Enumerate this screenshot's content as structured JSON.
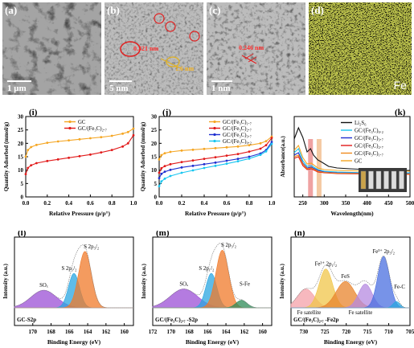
{
  "figure": {
    "panels_top": [
      {
        "id": "a",
        "label": "(a)",
        "scale_bar": "1 μm"
      },
      {
        "id": "b",
        "label": "(b)",
        "scale_bar": "5 nm",
        "annotations": [
          "0.321 nm",
          "1.6 nm"
        ]
      },
      {
        "id": "c",
        "label": "(c)",
        "scale_bar": "1 nm",
        "annotations": [
          "0.246 nm"
        ]
      },
      {
        "id": "d",
        "label": "(d)",
        "element": "Fe"
      }
    ],
    "colors": {
      "gc": "#f5a623",
      "gcfe": "#e11919",
      "blue": "#1f2fd0",
      "cyan": "#19c6f0",
      "orange": "#f08a1c",
      "black": "#111111"
    }
  },
  "chart_data": [
    {
      "id": "i",
      "label": "(i)",
      "type": "line",
      "xlabel": "Relative Pressure (p/p°)",
      "ylabel": "Quantity Adsorbed (mmol/g)",
      "xlim": [
        0,
        1.0
      ],
      "ylim": [
        0,
        30
      ],
      "xticks": [
        "0.0",
        "0.2",
        "0.4",
        "0.6",
        "0.8",
        "1.0"
      ],
      "yticks": [
        "0",
        "5",
        "10",
        "15",
        "20",
        "25",
        "30"
      ],
      "series": [
        {
          "name": "GC",
          "color": "#f5a623",
          "x": [
            0,
            0.02,
            0.05,
            0.1,
            0.2,
            0.3,
            0.4,
            0.5,
            0.6,
            0.7,
            0.8,
            0.9,
            0.95,
            1.0
          ],
          "y": [
            15,
            17.5,
            18.6,
            19.4,
            20.2,
            20.7,
            21.1,
            21.5,
            21.9,
            22.3,
            22.8,
            23.6,
            24.2,
            25.5
          ]
        },
        {
          "name": "GC/(Fe₃C)₂.₇",
          "color": "#e11919",
          "x": [
            0,
            0.02,
            0.05,
            0.1,
            0.2,
            0.3,
            0.4,
            0.5,
            0.6,
            0.7,
            0.8,
            0.9,
            0.95,
            1.0
          ],
          "y": [
            8.5,
            10.8,
            11.8,
            12.6,
            13.4,
            14.0,
            14.6,
            15.2,
            15.8,
            16.6,
            17.5,
            18.8,
            20.0,
            23.0
          ]
        }
      ]
    },
    {
      "id": "j",
      "label": "(j)",
      "type": "line",
      "xlabel": "Relative Pressure (p/p°)",
      "ylabel": "Quantity Adsorbed (mmol/g)",
      "xlim": [
        0,
        1.0
      ],
      "ylim": [
        0,
        30
      ],
      "xticks": [
        "0.0",
        "0.2",
        "0.4",
        "0.6",
        "0.8",
        "1.0"
      ],
      "yticks": [
        "0",
        "5",
        "10",
        "15",
        "20",
        "25",
        "30"
      ],
      "series": [
        {
          "name": "GC/(Fe₃C)₁.₇",
          "color": "#f5a623",
          "x": [
            0,
            0.02,
            0.05,
            0.1,
            0.2,
            0.3,
            0.4,
            0.5,
            0.6,
            0.7,
            0.8,
            0.9,
            0.95,
            1.0
          ],
          "y": [
            14,
            15.6,
            16.3,
            16.8,
            17.3,
            17.6,
            17.9,
            18.2,
            18.5,
            18.8,
            19.3,
            20.0,
            20.8,
            22.5
          ]
        },
        {
          "name": "GC/(Fe₃C)₂.₇",
          "color": "#e11919",
          "x": [
            0,
            0.02,
            0.05,
            0.1,
            0.2,
            0.3,
            0.4,
            0.5,
            0.6,
            0.7,
            0.8,
            0.9,
            0.95,
            1.0
          ],
          "y": [
            9,
            10.7,
            11.5,
            12.2,
            13.0,
            13.6,
            14.2,
            14.8,
            15.4,
            16.0,
            16.9,
            18.0,
            19.3,
            22.0
          ]
        },
        {
          "name": "GC/(Fe₃C)₃.₇",
          "color": "#1f2fd0",
          "x": [
            0,
            0.02,
            0.05,
            0.1,
            0.2,
            0.3,
            0.4,
            0.5,
            0.6,
            0.7,
            0.8,
            0.9,
            0.95,
            1.0
          ],
          "y": [
            7,
            8.6,
            9.4,
            10.1,
            11.0,
            11.6,
            12.2,
            12.8,
            13.5,
            14.2,
            15.0,
            16.2,
            17.5,
            20.5
          ]
        },
        {
          "name": "GC/(Fe₃C)₀.₂",
          "color": "#19c6f0",
          "x": [
            0,
            0.02,
            0.05,
            0.1,
            0.2,
            0.3,
            0.4,
            0.5,
            0.6,
            0.7,
            0.8,
            0.9,
            0.95,
            1.0
          ],
          "y": [
            4,
            5.8,
            6.8,
            7.8,
            9.0,
            9.9,
            10.8,
            11.6,
            12.4,
            13.3,
            14.3,
            15.7,
            17.0,
            19.8
          ]
        }
      ]
    },
    {
      "id": "k",
      "label": "(k)",
      "type": "line",
      "xlabel": "Wavelength(nm)",
      "ylabel": "Absorbance(a.u.)",
      "xlim": [
        230,
        500
      ],
      "ylim": [
        0,
        1.0
      ],
      "xticks": [
        "250",
        "300",
        "350",
        "400",
        "450",
        "500"
      ],
      "highlight_bands": [
        {
          "center": 268,
          "color": "#e87a7a"
        },
        {
          "center": 288,
          "color": "#f0b27a"
        }
      ],
      "series": [
        {
          "name": "Li₂S₆",
          "color": "#111111",
          "x": [
            230,
            240,
            250,
            260,
            268,
            275,
            285,
            295,
            310,
            330,
            360,
            400,
            450,
            500
          ],
          "y": [
            0.72,
            0.86,
            0.74,
            0.56,
            0.6,
            0.52,
            0.46,
            0.43,
            0.38,
            0.36,
            0.35,
            0.34,
            0.33,
            0.33
          ]
        },
        {
          "name": "GC/(Fe₃C)₀.₂",
          "color": "#19c6f0",
          "x": [
            230,
            240,
            250,
            260,
            270,
            285,
            300,
            330,
            400,
            500
          ],
          "y": [
            0.55,
            0.6,
            0.45,
            0.38,
            0.39,
            0.34,
            0.32,
            0.31,
            0.3,
            0.3
          ]
        },
        {
          "name": "GC/(Fe₃C)₃.₇",
          "color": "#1f2fd0",
          "x": [
            230,
            240,
            250,
            260,
            270,
            285,
            300,
            330,
            400,
            500
          ],
          "y": [
            0.52,
            0.55,
            0.42,
            0.36,
            0.37,
            0.33,
            0.31,
            0.3,
            0.295,
            0.29
          ]
        },
        {
          "name": "GC/(Fe₃C)₂.₇",
          "color": "#e11919",
          "x": [
            230,
            240,
            250,
            260,
            270,
            285,
            300,
            330,
            400,
            500
          ],
          "y": [
            0.48,
            0.5,
            0.39,
            0.34,
            0.35,
            0.31,
            0.3,
            0.29,
            0.285,
            0.28
          ]
        },
        {
          "name": "GC/(Fe₃C)₁.₇",
          "color": "#f08a1c",
          "x": [
            230,
            240,
            250,
            260,
            270,
            285,
            300,
            330,
            400,
            500
          ],
          "y": [
            0.5,
            0.52,
            0.41,
            0.35,
            0.36,
            0.32,
            0.305,
            0.295,
            0.29,
            0.285
          ]
        },
        {
          "name": "GC",
          "color": "#f5a623",
          "x": [
            230,
            240,
            250,
            260,
            270,
            285,
            300,
            330,
            400,
            500
          ],
          "y": [
            0.58,
            0.64,
            0.49,
            0.41,
            0.42,
            0.36,
            0.34,
            0.33,
            0.32,
            0.32
          ]
        }
      ]
    },
    {
      "id": "l",
      "label": "(l)",
      "type": "area",
      "xlabel": "Binding Energy (eV)",
      "ylabel": "Intensity (a.u.)",
      "xlim": [
        172,
        159
      ],
      "xticks": [
        "170",
        "168",
        "166",
        "164",
        "162",
        "160"
      ],
      "corner_label": "GC-S2p",
      "peaks": [
        {
          "name": "SOₓ",
          "center": 168.8,
          "height": 0.28,
          "width": 1.4,
          "color": "#9b4fd6"
        },
        {
          "name": "S 2p₁/₂",
          "center": 165.5,
          "height": 0.55,
          "width": 0.6,
          "color": "#2aa5e0"
        },
        {
          "name": "S 2p₃/₂",
          "center": 164.3,
          "height": 0.9,
          "width": 0.7,
          "color": "#f07a2a"
        }
      ]
    },
    {
      "id": "m",
      "label": "(m)",
      "type": "area",
      "xlabel": "Binding Energy (eV)",
      "ylabel": "Intensity (a.u.)",
      "xlim": [
        172,
        159
      ],
      "xticks": [
        "172",
        "170",
        "168",
        "166",
        "164",
        "162",
        "160"
      ],
      "corner_label": "GC/(Fe₃C)₂.₇ -S2p",
      "peaks": [
        {
          "name": "SOₓ",
          "center": 168.6,
          "height": 0.3,
          "width": 1.5,
          "color": "#9b4fd6"
        },
        {
          "name": "S 2p₁/₂",
          "center": 165.6,
          "height": 0.55,
          "width": 0.6,
          "color": "#2aa5e0"
        },
        {
          "name": "S 2p₃/₂",
          "center": 164.4,
          "height": 0.92,
          "width": 0.7,
          "color": "#f07a2a"
        },
        {
          "name": "S-Fe",
          "center": 162.3,
          "height": 0.12,
          "width": 0.6,
          "color": "#2e8b57"
        }
      ]
    },
    {
      "id": "n",
      "label": "(n)",
      "type": "area",
      "xlabel": "Binding Energy (eV)",
      "ylabel": "Intensity (a.u.)",
      "xlim": [
        733,
        705
      ],
      "xticks": [
        "730",
        "725",
        "720",
        "715",
        "710",
        "705"
      ],
      "corner_label": "GC/(Fe₃C)₂.₇ -Fe2p",
      "annotations": [
        "Fe satellite",
        "Fe satellite"
      ],
      "peaks": [
        {
          "name": "Fe satellite",
          "center": 729.5,
          "height": 0.3,
          "width": 2.0,
          "color": "#f4a0a8"
        },
        {
          "name": "Fe³⁺ 2p₁/₂",
          "center": 724.8,
          "height": 0.62,
          "width": 1.6,
          "color": "#f0c64a"
        },
        {
          "name": "FeS",
          "center": 720.2,
          "height": 0.42,
          "width": 2.2,
          "color": "#e8842c"
        },
        {
          "name": "Fe satellite",
          "center": 715.5,
          "height": 0.38,
          "width": 1.6,
          "color": "#b58ae0"
        },
        {
          "name": "Fe³⁺ 2p₃/₂",
          "center": 711.2,
          "height": 0.82,
          "width": 1.4,
          "color": "#4a6fe0"
        },
        {
          "name": "Fe-C",
          "center": 708.2,
          "height": 0.1,
          "width": 0.8,
          "color": "#2aa5e0"
        }
      ]
    }
  ]
}
